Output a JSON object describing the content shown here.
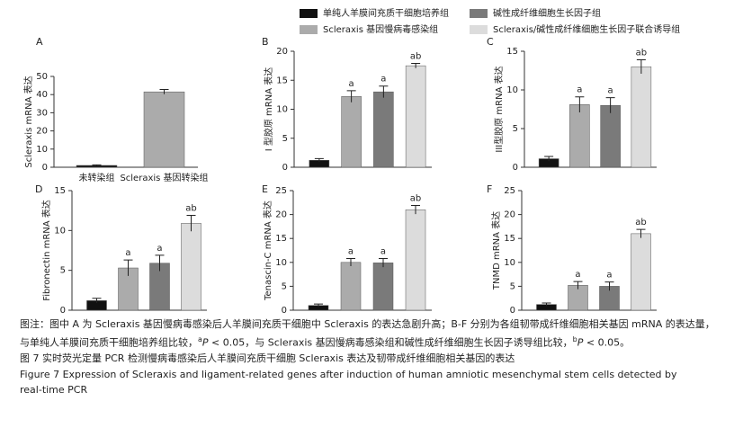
{
  "legend": [
    {
      "name": "单纯人羊膜间充质干细胞培养组",
      "color": "#111111"
    },
    {
      "name": "碱性成纤维细胞生长因子组",
      "color": "#7a7a7a"
    },
    {
      "name": "Scleraxis 基因慢病毒感染组",
      "color": "#ababab"
    },
    {
      "name": "Scleraxis/碱性成纤维细胞生长因子联合诱导组",
      "color": "#dcdcdc"
    }
  ],
  "chart_data": [
    {
      "type": "bar",
      "label": "A",
      "ylabel": "Scleraxis mRNA 表达",
      "categories": [
        "未转染组",
        "Scleraxis 基因转染组"
      ],
      "values": [
        1.0,
        41.5
      ],
      "errors": [
        0.3,
        1.3
      ],
      "colors": [
        "#111111",
        "#ababab"
      ],
      "annotations": [
        null,
        null
      ],
      "ylim": [
        0,
        50
      ],
      "yticks": [
        0,
        10,
        20,
        30,
        40,
        50
      ]
    },
    {
      "type": "bar",
      "label": "B",
      "ylabel": "I 型胶原 mRNA 表达",
      "values": [
        1.2,
        12.2,
        13.0,
        17.5
      ],
      "errors": [
        0.3,
        1.0,
        1.0,
        0.4
      ],
      "colors": [
        "#111111",
        "#ababab",
        "#7a7a7a",
        "#dcdcdc"
      ],
      "annotations": [
        null,
        "a",
        "a",
        "ab"
      ],
      "ylim": [
        0,
        20
      ],
      "yticks": [
        0,
        5,
        10,
        15,
        20
      ]
    },
    {
      "type": "bar",
      "label": "C",
      "ylabel": "III型胶原 mRNA 表达",
      "values": [
        1.1,
        8.1,
        8.0,
        13.0
      ],
      "errors": [
        0.3,
        1.0,
        1.0,
        0.9
      ],
      "colors": [
        "#111111",
        "#ababab",
        "#7a7a7a",
        "#dcdcdc"
      ],
      "annotations": [
        null,
        "a",
        "a",
        "ab"
      ],
      "ylim": [
        0,
        15
      ],
      "yticks": [
        0,
        5,
        10,
        15
      ]
    },
    {
      "type": "bar",
      "label": "D",
      "ylabel": "Fibronectin mRNA 表达",
      "values": [
        1.2,
        5.3,
        5.9,
        10.9
      ],
      "errors": [
        0.3,
        1.0,
        1.0,
        1.0
      ],
      "colors": [
        "#111111",
        "#ababab",
        "#7a7a7a",
        "#dcdcdc"
      ],
      "annotations": [
        null,
        "a",
        "a",
        "ab"
      ],
      "ylim": [
        0,
        15
      ],
      "yticks": [
        0,
        5,
        10,
        15
      ]
    },
    {
      "type": "bar",
      "label": "E",
      "ylabel": "Tenascin-C mRNA 表达",
      "values": [
        1.0,
        10.0,
        9.9,
        21.0
      ],
      "errors": [
        0.3,
        0.8,
        0.9,
        0.9
      ],
      "colors": [
        "#111111",
        "#ababab",
        "#7a7a7a",
        "#dcdcdc"
      ],
      "annotations": [
        null,
        "a",
        "a",
        "ab"
      ],
      "ylim": [
        0,
        25
      ],
      "yticks": [
        0,
        5,
        10,
        15,
        20,
        25
      ]
    },
    {
      "type": "bar",
      "label": "F",
      "ylabel": "TNMD mRNA 表达",
      "values": [
        1.2,
        5.2,
        5.0,
        16.0
      ],
      "errors": [
        0.3,
        0.8,
        0.9,
        0.9
      ],
      "colors": [
        "#111111",
        "#ababab",
        "#7a7a7a",
        "#dcdcdc"
      ],
      "annotations": [
        null,
        "a",
        "a",
        "ab"
      ],
      "ylim": [
        0,
        25
      ],
      "yticks": [
        0,
        5,
        10,
        15,
        20,
        25
      ]
    }
  ],
  "caption": {
    "note": [
      "图注：图中 A 为 Scleraxis 基因慢病毒感染后人羊膜间充质干细胞中 Scleraxis 的表达急剧升高；B-F 分别为各组韧带成纤维细胞相关基因 mRNA 的表达量，与单纯人羊膜间充质干细胞培养组比较，",
      "a",
      "P",
      " < 0.05，与 Scleraxis 基因慢病毒感染组和碱性成纤维细胞生长因子诱导组比较，",
      "b",
      "P",
      " < 0.05。"
    ],
    "title_cn": "图 7   实时荧光定量 PCR 检测慢病毒感染后人羊膜间充质干细胞 Scleraxis 表达及韧带成纤维细胞相关基因的表达",
    "title_en": "Figure 7    Expression of Scleraxis and ligament-related genes after induction of human amniotic mesenchymal stem cells detected by real-time PCR"
  }
}
